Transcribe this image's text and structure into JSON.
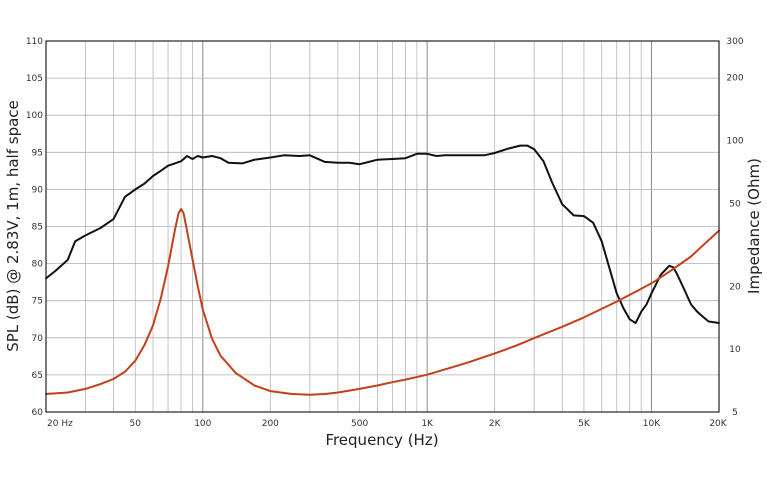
{
  "chart_data": {
    "type": "line",
    "xlabel": "Frequency (Hz)",
    "ylabel": "SPL (dB) @ 2.83V, 1m, half space",
    "y2label": "Impedance (Ohm)",
    "x_scale": "log",
    "xlim": [
      20,
      20000
    ],
    "ylim": [
      60,
      110
    ],
    "y2_scale": "log",
    "y2lim": [
      5,
      300
    ],
    "grid": true,
    "x_tick_labels": [
      {
        "value": 20,
        "label": "20  Hz"
      },
      {
        "value": 50,
        "label": "50"
      },
      {
        "value": 100,
        "label": "100"
      },
      {
        "value": 200,
        "label": "200"
      },
      {
        "value": 500,
        "label": "500"
      },
      {
        "value": 1000,
        "label": "1K"
      },
      {
        "value": 2000,
        "label": "2K"
      },
      {
        "value": 5000,
        "label": "5K"
      },
      {
        "value": 10000,
        "label": "10K"
      },
      {
        "value": 20000,
        "label": "20K"
      }
    ],
    "y_ticks": [
      60,
      65,
      70,
      75,
      80,
      85,
      90,
      95,
      100,
      105,
      110
    ],
    "y2_ticks": [
      5,
      10,
      20,
      50,
      100,
      200,
      300
    ],
    "series": [
      {
        "axis": "left",
        "color": "#111111",
        "x": [
          20,
          22,
          25,
          27,
          30,
          35,
          40,
          45,
          50,
          55,
          60,
          65,
          70,
          75,
          80,
          85,
          90,
          95,
          100,
          110,
          120,
          130,
          150,
          170,
          200,
          230,
          270,
          300,
          350,
          400,
          450,
          500,
          550,
          600,
          700,
          800,
          900,
          1000,
          1100,
          1200,
          1500,
          1800,
          2000,
          2300,
          2600,
          2800,
          3000,
          3300,
          3600,
          4000,
          4500,
          5000,
          5500,
          6000,
          7000,
          7500,
          8000,
          8500,
          9000,
          9500,
          10000,
          11000,
          12000,
          12500,
          13000,
          14000,
          15000,
          16000,
          17000,
          18000,
          20000
        ],
        "values": [
          78,
          79,
          80.5,
          83,
          83.8,
          84.8,
          86,
          89,
          90,
          90.8,
          91.8,
          92.5,
          93.2,
          93.5,
          93.8,
          94.5,
          94.1,
          94.5,
          94.3,
          94.5,
          94.2,
          93.6,
          93.5,
          94,
          94.3,
          94.6,
          94.5,
          94.6,
          93.7,
          93.6,
          93.6,
          93.4,
          93.7,
          94,
          94.1,
          94.2,
          94.8,
          94.8,
          94.5,
          94.6,
          94.6,
          94.6,
          94.9,
          95.5,
          95.9,
          95.9,
          95.4,
          93.8,
          91,
          88,
          86.5,
          86.4,
          85.5,
          83,
          76,
          74,
          72.5,
          72,
          73.5,
          74.5,
          76,
          78.5,
          79.7,
          79.5,
          78.6,
          76.5,
          74.5,
          73.5,
          72.8,
          72.2,
          72
        ]
      },
      {
        "axis": "right",
        "color": "#c2401a",
        "x": [
          20,
          25,
          30,
          35,
          40,
          45,
          50,
          55,
          60,
          65,
          70,
          75,
          78,
          80,
          82,
          85,
          90,
          95,
          100,
          110,
          120,
          140,
          170,
          200,
          250,
          300,
          350,
          400,
          500,
          600,
          700,
          800,
          1000,
          1200,
          1500,
          2000,
          2500,
          3000,
          4000,
          5000,
          6000,
          7000,
          8000,
          10000,
          12000,
          15000,
          17000,
          20000
        ],
        "values": [
          6.1,
          6.2,
          6.45,
          6.8,
          7.2,
          7.8,
          8.8,
          10.5,
          13,
          17.5,
          25,
          37,
          45,
          47,
          45,
          37,
          27,
          20,
          15.5,
          11.2,
          9.3,
          7.7,
          6.7,
          6.3,
          6.1,
          6.05,
          6.1,
          6.2,
          6.45,
          6.7,
          6.95,
          7.15,
          7.55,
          8,
          8.6,
          9.55,
          10.4,
          11.3,
          12.8,
          14.2,
          15.6,
          16.9,
          18.2,
          20.7,
          23.5,
          27.8,
          31.5,
          37
        ]
      }
    ]
  }
}
